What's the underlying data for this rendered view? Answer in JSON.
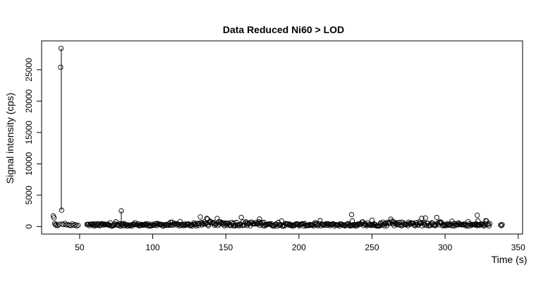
{
  "chart_data": {
    "type": "scatter",
    "title": "Data Reduced Ni60 > LOD",
    "xlabel": "Time (s)",
    "ylabel": "Signal intensity (cps)",
    "xlim": [
      24,
      353
    ],
    "ylim": [
      -1200,
      29600
    ],
    "xticks": [
      50,
      100,
      150,
      200,
      250,
      300,
      350
    ],
    "yticks": [
      0,
      5000,
      10000,
      15000,
      20000,
      25000
    ],
    "grid": false,
    "legend": "none",
    "series": [
      {
        "points": [
          [
            32,
            1700
          ],
          [
            32.5,
            1400
          ],
          [
            33,
            500
          ],
          [
            33.5,
            300
          ],
          [
            34,
            200
          ],
          [
            35,
            150
          ],
          [
            36,
            350
          ],
          [
            37,
            25400
          ],
          [
            37.3,
            28400
          ],
          [
            37.7,
            2600
          ],
          [
            38,
            400
          ],
          [
            39,
            300
          ],
          [
            40,
            500
          ],
          [
            41,
            250
          ],
          [
            42,
            300
          ],
          [
            43,
            200
          ],
          [
            44,
            150
          ],
          [
            45,
            400
          ],
          [
            46,
            200
          ],
          [
            47,
            300
          ],
          [
            48,
            100
          ],
          [
            49,
            200
          ],
          [
            78.5,
            2500
          ],
          [
            78.5,
            350
          ],
          [
            137,
            1300
          ],
          [
            137.5,
            1200
          ],
          [
            173,
            1200
          ],
          [
            236,
            1900
          ],
          [
            236.5,
            900
          ],
          [
            250,
            1000
          ],
          [
            284,
            1300
          ],
          [
            322,
            1800
          ],
          [
            322.5,
            900
          ]
        ],
        "filled_range": [
          55,
          331
        ],
        "baseline_typical": 300,
        "baseline_max": 800
      }
    ],
    "connector": {
      "x": 37.5,
      "from_y": 2600,
      "to_y": 28400
    },
    "connector2": {
      "x": 78.5,
      "from_y": 350,
      "to_y": 2500
    }
  }
}
